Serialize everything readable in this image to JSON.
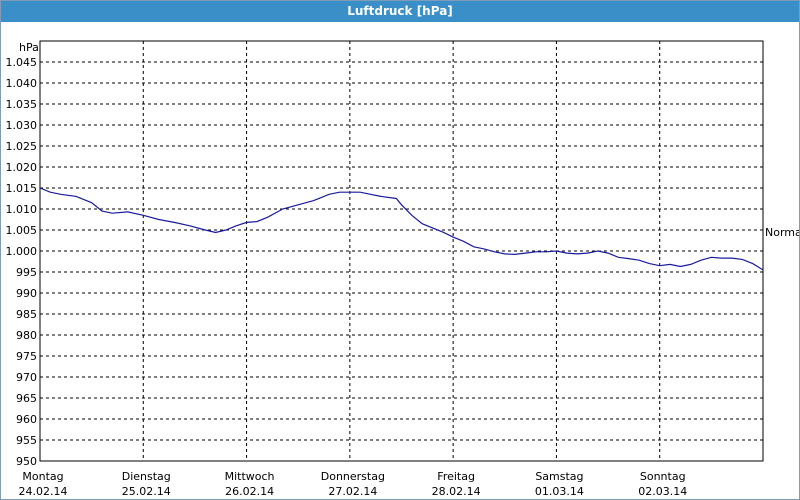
{
  "window": {
    "title": "Luftdruck [hPa]"
  },
  "colors": {
    "titlebar": "#3b8fc9",
    "line": "#1a1aa0",
    "grid": "#000000"
  },
  "chart_data": {
    "type": "line",
    "title": "Luftdruck [hPa]",
    "ylabel": "hPa",
    "ylim": [
      950,
      1050
    ],
    "yticks": [
      950,
      955,
      960,
      965,
      970,
      975,
      980,
      985,
      990,
      995,
      1000,
      1005,
      1010,
      1015,
      1020,
      1025,
      1030,
      1035,
      1040,
      1045
    ],
    "ytick_labels": [
      "950",
      "955",
      "960",
      "965",
      "970",
      "975",
      "980",
      "985",
      "990",
      "995",
      "1.000",
      "1.005",
      "1.010",
      "1.015",
      "1.020",
      "1.025",
      "1.030",
      "1.035",
      "1.040",
      "1.045"
    ],
    "xlim": [
      0,
      7
    ],
    "x_ticks": [
      {
        "x": 0,
        "day": "Montag",
        "date": "24.02.14"
      },
      {
        "x": 1,
        "day": "Dienstag",
        "date": "25.02.14"
      },
      {
        "x": 2,
        "day": "Mittwoch",
        "date": "26.02.14"
      },
      {
        "x": 3,
        "day": "Donnerstag",
        "date": "27.02.14"
      },
      {
        "x": 4,
        "day": "Freitag",
        "date": "28.02.14"
      },
      {
        "x": 5,
        "day": "Samstag",
        "date": "01.03.14"
      },
      {
        "x": 6,
        "day": "Sonntag",
        "date": "02.03.14"
      }
    ],
    "grid": true,
    "reference": {
      "label": "Normal",
      "value": 1004.5
    },
    "series": [
      {
        "x": [
          0,
          0.1,
          0.2,
          0.35,
          0.5,
          0.6,
          0.7,
          0.85,
          1.0,
          1.15,
          1.3,
          1.45,
          1.6,
          1.7,
          1.8,
          1.9,
          2.0,
          2.1,
          2.2,
          2.35,
          2.5,
          2.65,
          2.8,
          2.9,
          3.0,
          3.1,
          3.2,
          3.3,
          3.45,
          3.5,
          3.6,
          3.7,
          3.8,
          3.9,
          4.0,
          4.1,
          4.2,
          4.3,
          4.4,
          4.5,
          4.6,
          4.7,
          4.8,
          4.9,
          5.0,
          5.1,
          5.2,
          5.3,
          5.4,
          5.5,
          5.6,
          5.7,
          5.8,
          5.9,
          6.0,
          6.1,
          6.2,
          6.3,
          6.4,
          6.5,
          6.6,
          6.7,
          6.8,
          6.9,
          7.0
        ],
        "y": [
          1015,
          1014,
          1013.5,
          1013,
          1011.5,
          1009.5,
          1009,
          1009.3,
          1008.5,
          1007.5,
          1006.8,
          1006,
          1005,
          1004.4,
          1005,
          1006,
          1006.8,
          1007,
          1008,
          1010,
          1011,
          1012,
          1013.5,
          1014,
          1014,
          1014,
          1013.5,
          1013,
          1012.5,
          1011,
          1008.5,
          1006.5,
          1005.5,
          1004.5,
          1003.3,
          1002.3,
          1001,
          1000.5,
          999.8,
          999.3,
          999.2,
          999.5,
          999.8,
          999.8,
          1000,
          999.5,
          999.3,
          999.5,
          1000,
          999.5,
          998.5,
          998.2,
          997.8,
          997,
          996.5,
          996.8,
          996.3,
          996.8,
          997.8,
          998.5,
          998.3,
          998.3,
          998,
          997,
          995.5
        ]
      }
    ]
  }
}
